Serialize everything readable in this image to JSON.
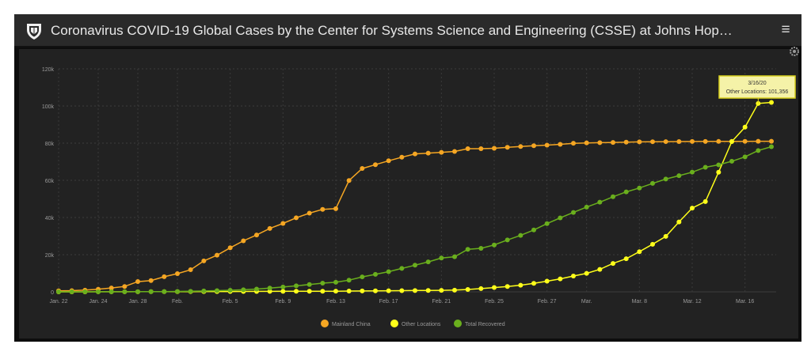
{
  "header": {
    "title": "Coronavirus COVID-19 Global Cases by the Center for Systems Science and Engineering (CSSE) at Johns Hop…",
    "menu_icon": "hamburger-menu-icon",
    "logo_icon": "jhu-shield-icon"
  },
  "colors": {
    "background": "#222222",
    "mainland_china": "#f5a623",
    "other_locations": "#ffff1a",
    "total_recovered": "#6aaf1d",
    "tooltip_bg": "#f5f2a8",
    "tooltip_border": "#d8cf1a"
  },
  "tooltip": {
    "date": "3/16/20",
    "label": "Other Locations: 101,356"
  },
  "chart_data": {
    "type": "line",
    "title": "",
    "xlabel": "",
    "ylabel": "",
    "ylim": [
      0,
      120000
    ],
    "y_ticks": [
      0,
      20000,
      40000,
      60000,
      80000,
      100000,
      120000
    ],
    "y_tick_labels": [
      "0",
      "20k",
      "40k",
      "60k",
      "80k",
      "100k",
      "120k"
    ],
    "x_tick_labels": [
      "Jan. 22",
      "Jan. 24",
      "Jan. 28",
      "Feb.",
      "Feb. 5",
      "Feb. 9",
      "Feb. 13",
      "Feb. 17",
      "Feb. 21",
      "Feb. 25",
      "Feb. 27",
      "Mar.",
      "Mar. 8",
      "Mar. 12",
      "Mar. 16"
    ],
    "x_tick_index": [
      0,
      3,
      6,
      9,
      13,
      17,
      21,
      25,
      29,
      33,
      37,
      40,
      44,
      48,
      52
    ],
    "x_start": "2020-01-22",
    "grid": true,
    "legend_position": "bottom",
    "series": [
      {
        "name": "Mainland China",
        "color_key": "mainland_china",
        "values": [
          548,
          643,
          920,
          1406,
          2075,
          2877,
          5509,
          6087,
          8141,
          9802,
          11891,
          16630,
          19716,
          23707,
          27440,
          30587,
          34110,
          36814,
          39829,
          42354,
          44386,
          44759,
          59895,
          66358,
          68413,
          70513,
          72434,
          74211,
          74619,
          75077,
          75550,
          77001,
          77022,
          77241,
          77754,
          78166,
          78600,
          78928,
          79356,
          79932,
          80136,
          80261,
          80386,
          80537,
          80690,
          80770,
          80823,
          80860,
          80887,
          80921,
          80932,
          80945,
          80977,
          81003,
          81033
        ]
      },
      {
        "name": "Other Locations",
        "color_key": "other_locations",
        "values": [
          7,
          11,
          21,
          28,
          43,
          50,
          71,
          96,
          104,
          123,
          132,
          150,
          159,
          190,
          214,
          236,
          262,
          288,
          296,
          316,
          323,
          358,
          440,
          475,
          528,
          584,
          632,
          711,
          759,
          818,
          919,
          1279,
          1730,
          2318,
          2850,
          3559,
          4592,
          5754,
          6979,
          8504,
          9951,
          12083,
          15270,
          17814,
          21602,
          25603,
          29829,
          37618,
          45066,
          48587,
          64364,
          80841,
          88612,
          101356,
          101900
        ]
      },
      {
        "name": "Total Recovered",
        "color_key": "total_recovered",
        "values": [
          28,
          30,
          36,
          39,
          52,
          61,
          107,
          126,
          143,
          222,
          284,
          472,
          623,
          852,
          1124,
          1487,
          2011,
          2616,
          3244,
          3946,
          4683,
          5150,
          6295,
          8058,
          9395,
          10865,
          12583,
          14352,
          16121,
          18177,
          18890,
          22886,
          23394,
          25227,
          27905,
          30384,
          33277,
          36711,
          39782,
          42716,
          45602,
          48228,
          51170,
          53796,
          55865,
          58359,
          60694,
          62494,
          64404,
          67003,
          68324,
          70251,
          72624,
          76034,
          78088
        ]
      }
    ]
  }
}
